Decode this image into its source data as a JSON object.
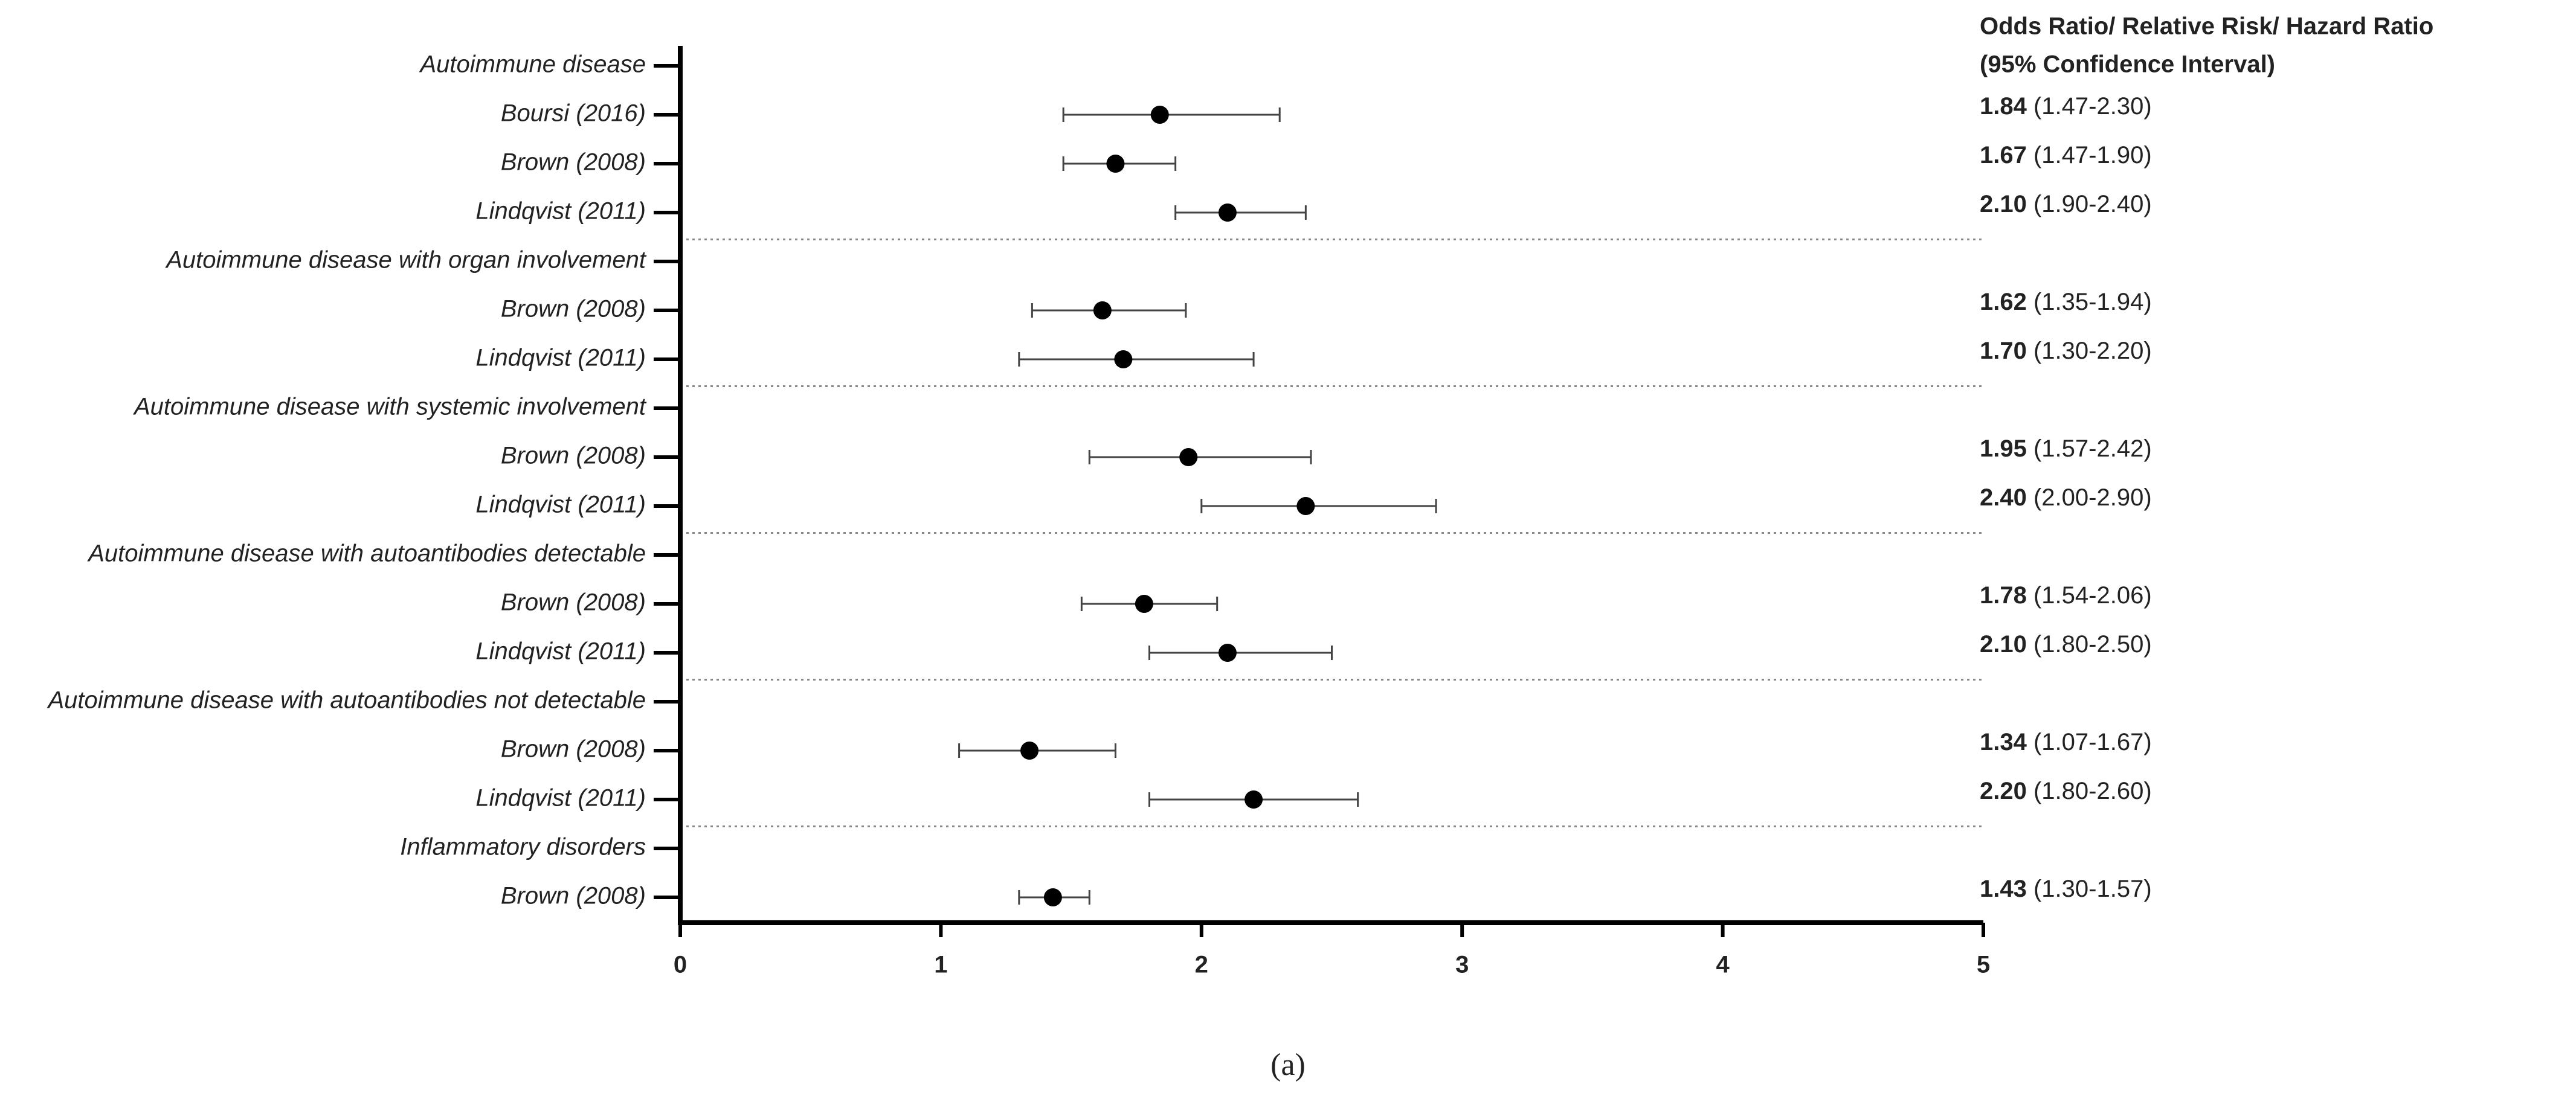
{
  "chart_data": {
    "type": "forest",
    "header": [
      "Odds Ratio/ Relative Risk/ Hazard Ratio",
      "(95% Confidence Interval)"
    ],
    "caption": "(a)",
    "categories": [
      "Autoimmune disease",
      "Boursi (2016)",
      "Brown (2008)",
      "Lindqvist (2011)",
      "Autoimmune disease with organ involvement",
      "Brown (2008)",
      "Lindqvist (2011)",
      "Autoimmune disease with systemic involvement",
      "Brown (2008)",
      "Lindqvist (2011)",
      "Autoimmune disease with autoantibodies detectable",
      "Brown (2008)",
      "Lindqvist (2011)",
      "Autoimmune disease with autoantibodies not detectable",
      "Brown (2008)",
      "Lindqvist (2011)",
      "Inflammatory disorders",
      "Brown (2008)"
    ],
    "values": [
      null,
      1.84,
      1.67,
      2.1,
      null,
      1.62,
      1.7,
      null,
      1.95,
      2.4,
      null,
      1.78,
      2.1,
      null,
      1.34,
      2.2,
      null,
      1.43
    ],
    "lower": [
      null,
      1.47,
      1.47,
      1.9,
      null,
      1.35,
      1.3,
      null,
      1.57,
      2.0,
      null,
      1.54,
      1.8,
      null,
      1.07,
      1.8,
      null,
      1.3
    ],
    "upper": [
      null,
      2.3,
      1.9,
      2.4,
      null,
      1.94,
      2.2,
      null,
      2.42,
      2.9,
      null,
      2.06,
      2.5,
      null,
      1.67,
      2.6,
      null,
      1.57
    ],
    "value_labels": [
      null,
      "1.84",
      "1.67",
      "2.10",
      null,
      "1.62",
      "1.70",
      null,
      "1.95",
      "2.40",
      null,
      "1.78",
      "2.10",
      null,
      "1.34",
      "2.20",
      null,
      "1.43"
    ],
    "ci_labels": [
      null,
      "(1.47-2.30)",
      "(1.47-1.90)",
      "(1.90-2.40)",
      null,
      "(1.35-1.94)",
      "(1.30-2.20)",
      null,
      "(1.57-2.42)",
      "(2.00-2.90)",
      null,
      "(1.54-2.06)",
      "(1.80-2.50)",
      null,
      "(1.07-1.67)",
      "(1.80-2.60)",
      null,
      "(1.30-1.57)"
    ],
    "color": "#000000",
    "xlim": [
      0,
      5
    ],
    "xticks": [
      0,
      1,
      2,
      3,
      4,
      5
    ]
  }
}
